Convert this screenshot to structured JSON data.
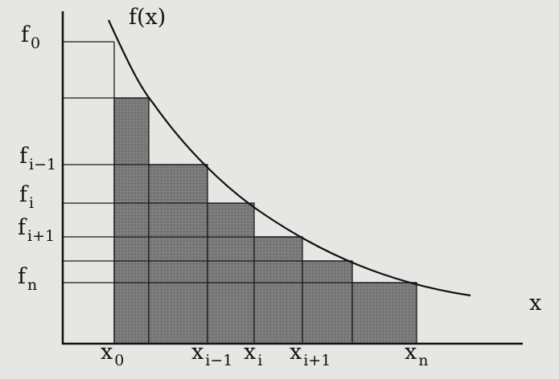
{
  "labels": {
    "curve": "f(x)",
    "x_axis": "x",
    "y": [
      {
        "base": "f",
        "sub": "0"
      },
      {
        "base": "f",
        "sub": "i−1"
      },
      {
        "base": "f",
        "sub": "i"
      },
      {
        "base": "f",
        "sub": "i+1"
      },
      {
        "base": "f",
        "sub": "n"
      }
    ],
    "x": [
      {
        "base": "x",
        "sub": "0"
      },
      {
        "base": "x",
        "sub": "i−1"
      },
      {
        "base": "x",
        "sub": "i"
      },
      {
        "base": "x",
        "sub": "i+1"
      },
      {
        "base": "x",
        "sub": "n"
      }
    ]
  }
}
